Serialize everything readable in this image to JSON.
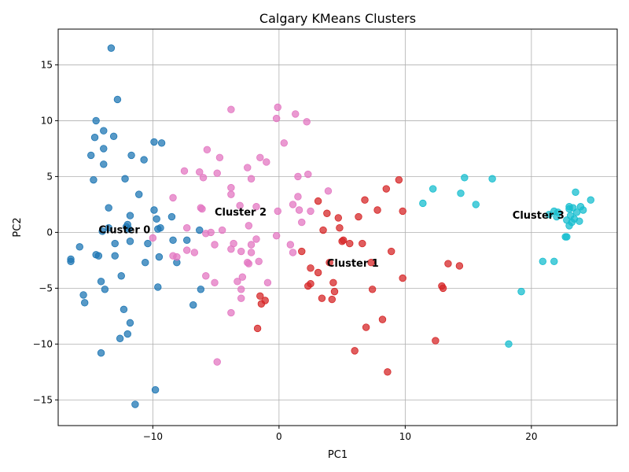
{
  "chart_data": {
    "type": "scatter",
    "title": "Calgary KMeans Clusters",
    "xlabel": "PC1",
    "ylabel": "PC2",
    "xlim": [
      -17.5,
      26.8
    ],
    "ylim": [
      -17.3,
      18.2
    ],
    "xticks": [
      -10,
      0,
      10,
      20
    ],
    "yticks": [
      -15,
      -10,
      -5,
      0,
      5,
      10,
      15
    ],
    "grid": true,
    "series": [
      {
        "color": "#1f77b4",
        "points": [
          [
            -13.3,
            16.5
          ],
          [
            -12.8,
            11.9
          ],
          [
            -14.5,
            10.0
          ],
          [
            -13.9,
            9.1
          ],
          [
            -13.1,
            8.6
          ],
          [
            -14.6,
            8.5
          ],
          [
            -13.9,
            7.5
          ],
          [
            -9.9,
            8.1
          ],
          [
            -9.3,
            8.0
          ],
          [
            -11.7,
            6.9
          ],
          [
            -14.9,
            6.9
          ],
          [
            -10.7,
            6.5
          ],
          [
            -13.9,
            6.1
          ],
          [
            -14.7,
            4.7
          ],
          [
            -12.2,
            4.8
          ],
          [
            -11.1,
            3.4
          ],
          [
            -13.5,
            2.2
          ],
          [
            -9.9,
            2.0
          ],
          [
            -11.8,
            1.5
          ],
          [
            -8.5,
            1.4
          ],
          [
            -9.7,
            1.2
          ],
          [
            -12.0,
            0.7
          ],
          [
            -12.1,
            0.5
          ],
          [
            -13.5,
            0.4
          ],
          [
            -9.4,
            0.4
          ],
          [
            -9.6,
            0.3
          ],
          [
            -11.9,
            0.3
          ],
          [
            -6.3,
            0.2
          ],
          [
            -14.0,
            0.1
          ],
          [
            -11.8,
            -0.8
          ],
          [
            -10.4,
            -1.0
          ],
          [
            -13.0,
            -1.0
          ],
          [
            -8.4,
            -0.7
          ],
          [
            -7.3,
            -0.7
          ],
          [
            -15.8,
            -1.3
          ],
          [
            -14.5,
            -2.0
          ],
          [
            -14.3,
            -2.1
          ],
          [
            -13.0,
            -2.1
          ],
          [
            -9.5,
            -2.2
          ],
          [
            -16.5,
            -2.4
          ],
          [
            -16.5,
            -2.6
          ],
          [
            -10.6,
            -2.7
          ],
          [
            -8.1,
            -2.7
          ],
          [
            -12.5,
            -3.9
          ],
          [
            -14.1,
            -4.4
          ],
          [
            -9.6,
            -4.9
          ],
          [
            -13.8,
            -5.1
          ],
          [
            -6.2,
            -5.1
          ],
          [
            -15.5,
            -5.6
          ],
          [
            -15.4,
            -6.3
          ],
          [
            -6.8,
            -6.5
          ],
          [
            -12.3,
            -6.9
          ],
          [
            -11.8,
            -8.1
          ],
          [
            -12.6,
            -9.5
          ],
          [
            -12.0,
            -9.1
          ],
          [
            -14.1,
            -10.8
          ],
          [
            -9.8,
            -14.1
          ],
          [
            -11.4,
            -15.4
          ]
        ]
      },
      {
        "color": "#d62728",
        "points": [
          [
            9.5,
            4.7
          ],
          [
            8.5,
            3.9
          ],
          [
            6.8,
            2.9
          ],
          [
            3.1,
            2.8
          ],
          [
            7.8,
            2.0
          ],
          [
            9.8,
            1.9
          ],
          [
            3.8,
            1.7
          ],
          [
            4.7,
            1.3
          ],
          [
            6.3,
            1.4
          ],
          [
            4.8,
            0.4
          ],
          [
            3.5,
            0.2
          ],
          [
            5.0,
            -0.8
          ],
          [
            5.1,
            -0.7
          ],
          [
            5.6,
            -1.0
          ],
          [
            6.6,
            -1.0
          ],
          [
            8.9,
            -1.7
          ],
          [
            1.8,
            -1.7
          ],
          [
            4.0,
            -2.7
          ],
          [
            7.3,
            -2.7
          ],
          [
            13.4,
            -2.8
          ],
          [
            14.3,
            -3.0
          ],
          [
            2.5,
            -3.2
          ],
          [
            3.1,
            -3.6
          ],
          [
            9.8,
            -4.1
          ],
          [
            4.3,
            -4.5
          ],
          [
            2.5,
            -4.6
          ],
          [
            2.3,
            -4.8
          ],
          [
            12.9,
            -4.8
          ],
          [
            13.0,
            -5.0
          ],
          [
            7.4,
            -5.1
          ],
          [
            4.4,
            -5.3
          ],
          [
            -1.5,
            -5.7
          ],
          [
            3.4,
            -5.9
          ],
          [
            4.2,
            -6.0
          ],
          [
            -1.1,
            -6.1
          ],
          [
            -1.4,
            -6.4
          ],
          [
            8.2,
            -7.8
          ],
          [
            6.9,
            -8.5
          ],
          [
            -1.7,
            -8.6
          ],
          [
            12.4,
            -9.7
          ],
          [
            6.0,
            -10.6
          ],
          [
            8.6,
            -12.5
          ]
        ]
      },
      {
        "color": "#e377c2",
        "points": [
          [
            -0.1,
            11.2
          ],
          [
            -3.8,
            11.0
          ],
          [
            1.3,
            10.6
          ],
          [
            -0.2,
            10.2
          ],
          [
            2.2,
            9.9
          ],
          [
            0.4,
            8.0
          ],
          [
            -5.7,
            7.4
          ],
          [
            -4.7,
            6.7
          ],
          [
            -1.5,
            6.7
          ],
          [
            -1.0,
            6.3
          ],
          [
            -2.5,
            5.8
          ],
          [
            -7.5,
            5.5
          ],
          [
            -6.3,
            5.4
          ],
          [
            -4.9,
            5.3
          ],
          [
            2.3,
            5.2
          ],
          [
            1.5,
            5.0
          ],
          [
            -6.0,
            4.9
          ],
          [
            -2.2,
            4.8
          ],
          [
            -3.8,
            4.0
          ],
          [
            3.9,
            3.7
          ],
          [
            -3.8,
            3.4
          ],
          [
            1.5,
            3.2
          ],
          [
            -8.4,
            3.1
          ],
          [
            1.1,
            2.5
          ],
          [
            -3.1,
            2.4
          ],
          [
            -1.8,
            2.3
          ],
          [
            -6.2,
            2.2
          ],
          [
            -6.1,
            2.1
          ],
          [
            2.5,
            1.9
          ],
          [
            1.6,
            2.0
          ],
          [
            -0.1,
            1.9
          ],
          [
            1.8,
            0.9
          ],
          [
            -2.4,
            0.6
          ],
          [
            -7.3,
            0.4
          ],
          [
            -4.5,
            0.2
          ],
          [
            -5.4,
            0.0
          ],
          [
            -5.8,
            -0.1
          ],
          [
            -0.2,
            -0.3
          ],
          [
            -10.0,
            -0.5
          ],
          [
            -1.8,
            -0.6
          ],
          [
            -5.1,
            -1.1
          ],
          [
            -3.6,
            -1.0
          ],
          [
            0.9,
            -1.1
          ],
          [
            -2.2,
            -1.1
          ],
          [
            -7.3,
            -1.6
          ],
          [
            -3.8,
            -1.5
          ],
          [
            -3.0,
            -1.7
          ],
          [
            -6.7,
            -1.8
          ],
          [
            1.1,
            -1.8
          ],
          [
            -2.2,
            -1.8
          ],
          [
            -8.4,
            -2.1
          ],
          [
            -8.1,
            -2.2
          ],
          [
            -1.6,
            -2.6
          ],
          [
            -2.5,
            -2.7
          ],
          [
            -2.4,
            -2.8
          ],
          [
            -5.8,
            -3.9
          ],
          [
            -2.9,
            -4.0
          ],
          [
            -3.3,
            -4.4
          ],
          [
            -5.1,
            -4.5
          ],
          [
            -0.9,
            -4.5
          ],
          [
            -3.0,
            -5.1
          ],
          [
            -3.0,
            -5.9
          ],
          [
            -3.8,
            -7.2
          ],
          [
            -4.9,
            -11.6
          ]
        ]
      },
      {
        "color": "#17becf",
        "points": [
          [
            14.7,
            4.9
          ],
          [
            16.9,
            4.8
          ],
          [
            12.2,
            3.9
          ],
          [
            14.4,
            3.5
          ],
          [
            23.5,
            3.6
          ],
          [
            24.7,
            2.9
          ],
          [
            11.4,
            2.6
          ],
          [
            15.6,
            2.5
          ],
          [
            23.0,
            2.3
          ],
          [
            23.9,
            2.3
          ],
          [
            23.0,
            2.1
          ],
          [
            23.3,
            2.2
          ],
          [
            24.1,
            2.0
          ],
          [
            21.8,
            1.9
          ],
          [
            22.1,
            1.8
          ],
          [
            23.6,
            1.8
          ],
          [
            21.4,
            1.6
          ],
          [
            22.0,
            1.4
          ],
          [
            23.1,
            1.5
          ],
          [
            23.4,
            1.2
          ],
          [
            22.8,
            1.1
          ],
          [
            23.8,
            1.0
          ],
          [
            23.2,
            0.9
          ],
          [
            23.0,
            0.6
          ],
          [
            22.7,
            -0.4
          ],
          [
            22.8,
            -0.4
          ],
          [
            20.9,
            -2.6
          ],
          [
            21.8,
            -2.6
          ],
          [
            19.2,
            -5.3
          ],
          [
            18.2,
            -10.0
          ]
        ]
      }
    ],
    "annotations": [
      {
        "text": "Cluster 0",
        "x": -14.3,
        "y": 0.2
      },
      {
        "text": "Cluster 1",
        "x": 3.8,
        "y": -2.8
      },
      {
        "text": "Cluster 2",
        "x": -5.1,
        "y": 1.8
      },
      {
        "text": "Cluster 3",
        "x": 18.5,
        "y": 1.5
      }
    ]
  }
}
